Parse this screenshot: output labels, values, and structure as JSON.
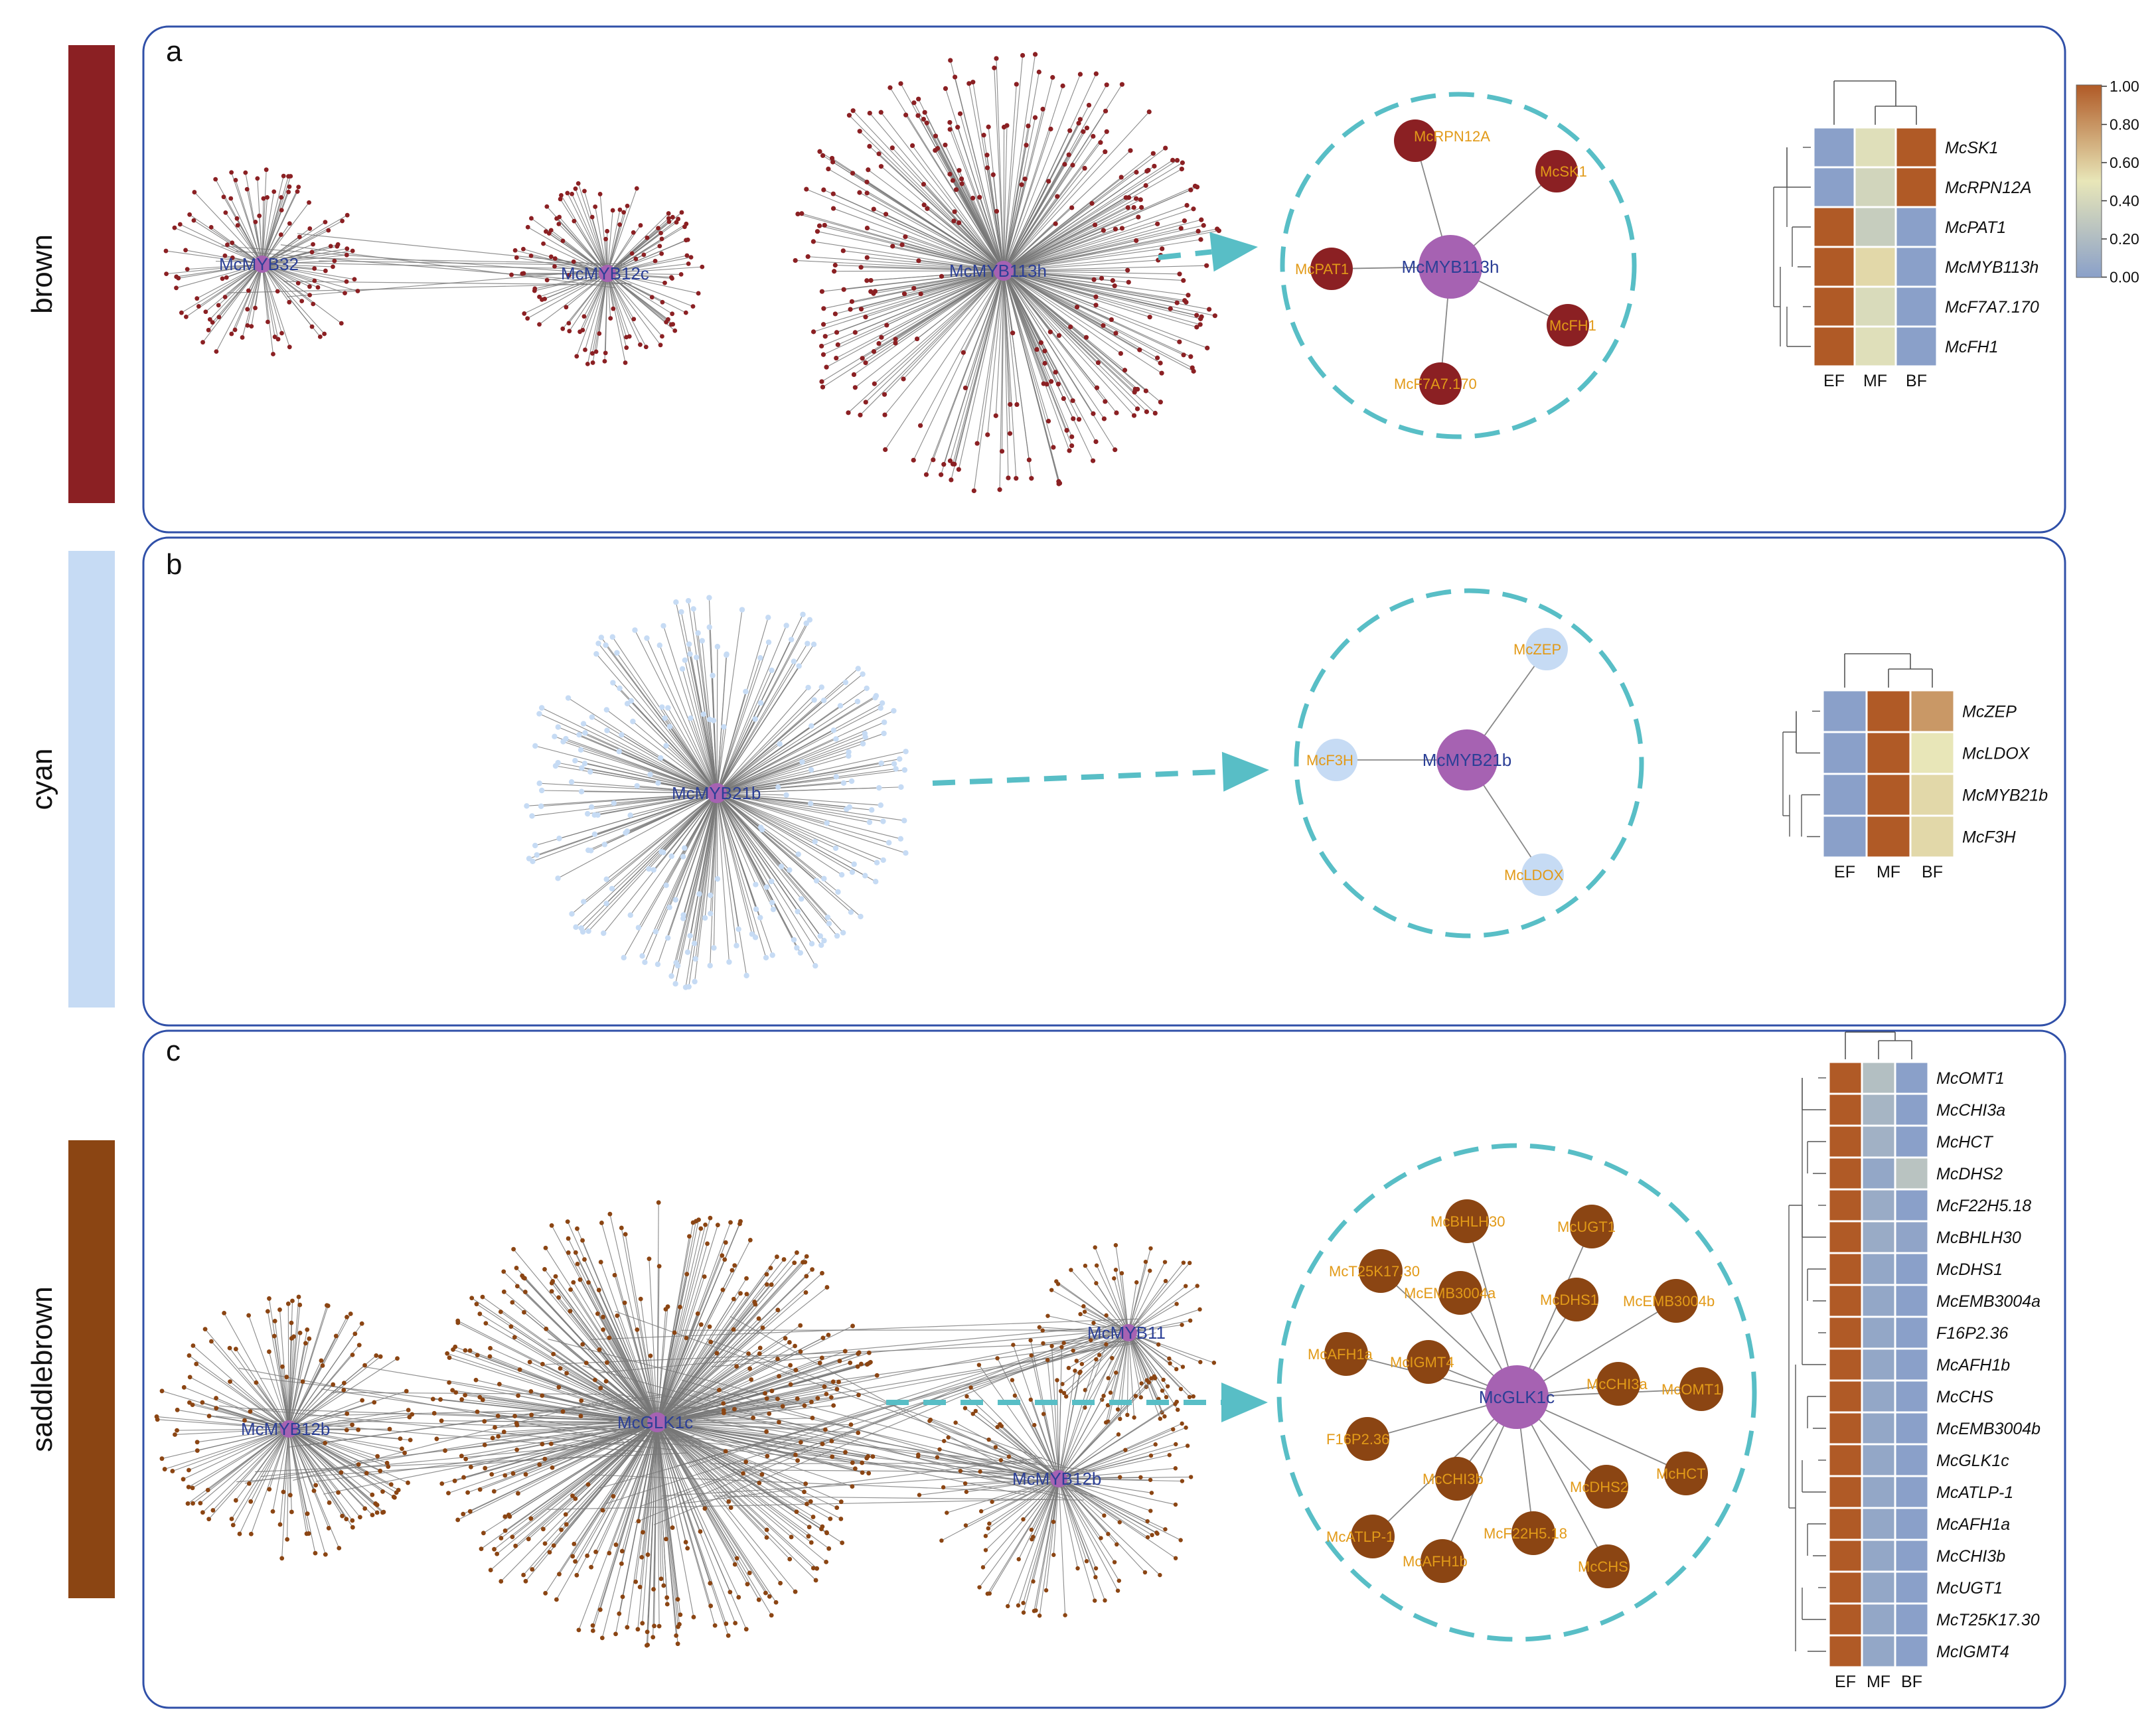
{
  "colors": {
    "brown": "#8b2023",
    "cyan": "#c6dbf4",
    "saddlebrown": "#8b4513",
    "hub": "#a662b2",
    "edge": "#777777",
    "dash": "#58bec6",
    "hub_text": "#2b3f96",
    "sat_text": "#e29a18",
    "panel_border": "#3050a8"
  },
  "color_scale": {
    "ticks": [
      "1.00",
      "0.80",
      "0.60",
      "0.40",
      "0.20",
      "0.00"
    ],
    "low": "#8aa0c9",
    "mid": "#e8e6b8",
    "high": "#b05a26"
  },
  "panels": [
    {
      "letter": "a",
      "module": "brown",
      "hubs": [
        "McMYB32",
        "McMYB12c",
        "McMYB113h"
      ],
      "subnet": {
        "center": "McMYB113h",
        "satellites": [
          "McRPN12A",
          "McSK1",
          "McPAT1",
          "McFH1",
          "McF7A7.170"
        ]
      },
      "heatmap": {
        "columns": [
          "EF",
          "MF",
          "BF"
        ],
        "genes": [
          "McSK1",
          "McRPN12A",
          "McPAT1",
          "McMYB113h",
          "McF7A7.170",
          "McFH1"
        ],
        "values": [
          [
            0.0,
            0.45,
            1.0
          ],
          [
            0.0,
            0.38,
            1.0
          ],
          [
            1.0,
            0.32,
            0.0
          ],
          [
            1.0,
            0.55,
            0.0
          ],
          [
            1.0,
            0.42,
            0.0
          ],
          [
            1.0,
            0.45,
            0.0
          ]
        ]
      }
    },
    {
      "letter": "b",
      "module": "cyan",
      "hubs": [
        "McMYB21b"
      ],
      "subnet": {
        "center": "McMYB21b",
        "satellites": [
          "McZEP",
          "McF3H",
          "McLDOX"
        ]
      },
      "heatmap": {
        "columns": [
          "EF",
          "MF",
          "BF"
        ],
        "genes": [
          "McZEP",
          "McLDOX",
          "McMYB21b",
          "McF3H"
        ],
        "values": [
          [
            0.0,
            1.0,
            0.78
          ],
          [
            0.0,
            1.0,
            0.5
          ],
          [
            0.0,
            1.0,
            0.55
          ],
          [
            0.0,
            1.0,
            0.55
          ]
        ]
      }
    },
    {
      "letter": "c",
      "module": "saddlebrown",
      "hubs": [
        "McMYB12b",
        "McGLK1c",
        "McMYB11",
        "McMYB12b"
      ],
      "subnet": {
        "center": "McGLK1c",
        "satellites": [
          "McBHLH30",
          "McUGT1",
          "McT25K17.30",
          "McEMB3004a",
          "McDHS1",
          "McEMB3004b",
          "McAFH1a",
          "McIGMT4",
          "McCHI3a",
          "McOMT1",
          "F16P2.36",
          "McCHI3b",
          "McDHS2",
          "McHCT",
          "McATLP-1",
          "McF22H5.18",
          "McAFH1b",
          "McCHS"
        ]
      },
      "heatmap": {
        "columns": [
          "EF",
          "MF",
          "BF"
        ],
        "genes": [
          "McOMT1",
          "McCHI3a",
          "McHCT",
          "McDHS2",
          "McF22H5.18",
          "McBHLH30",
          "McDHS1",
          "McEMB3004a",
          "F16P2.36",
          "McAFH1b",
          "McCHS",
          "McEMB3004b",
          "McGLK1c",
          "McATLP-1",
          "McAFH1a",
          "McCHI3b",
          "McUGT1",
          "McT25K17.30",
          "McIGMT4"
        ],
        "values": [
          [
            1.0,
            0.22,
            0.0
          ],
          [
            1.0,
            0.15,
            0.0
          ],
          [
            1.0,
            0.12,
            0.0
          ],
          [
            1.0,
            0.05,
            0.25
          ],
          [
            1.0,
            0.08,
            0.0
          ],
          [
            1.0,
            0.08,
            0.03
          ],
          [
            1.0,
            0.05,
            0.0
          ],
          [
            1.0,
            0.05,
            0.0
          ],
          [
            1.0,
            0.05,
            0.0
          ],
          [
            1.0,
            0.05,
            0.0
          ],
          [
            1.0,
            0.05,
            0.0
          ],
          [
            1.0,
            0.05,
            0.0
          ],
          [
            1.0,
            0.05,
            0.0
          ],
          [
            1.0,
            0.05,
            0.0
          ],
          [
            1.0,
            0.05,
            0.0
          ],
          [
            1.0,
            0.05,
            0.0
          ],
          [
            1.0,
            0.05,
            0.0
          ],
          [
            1.0,
            0.05,
            0.0
          ],
          [
            1.0,
            0.05,
            0.0
          ]
        ]
      }
    }
  ]
}
